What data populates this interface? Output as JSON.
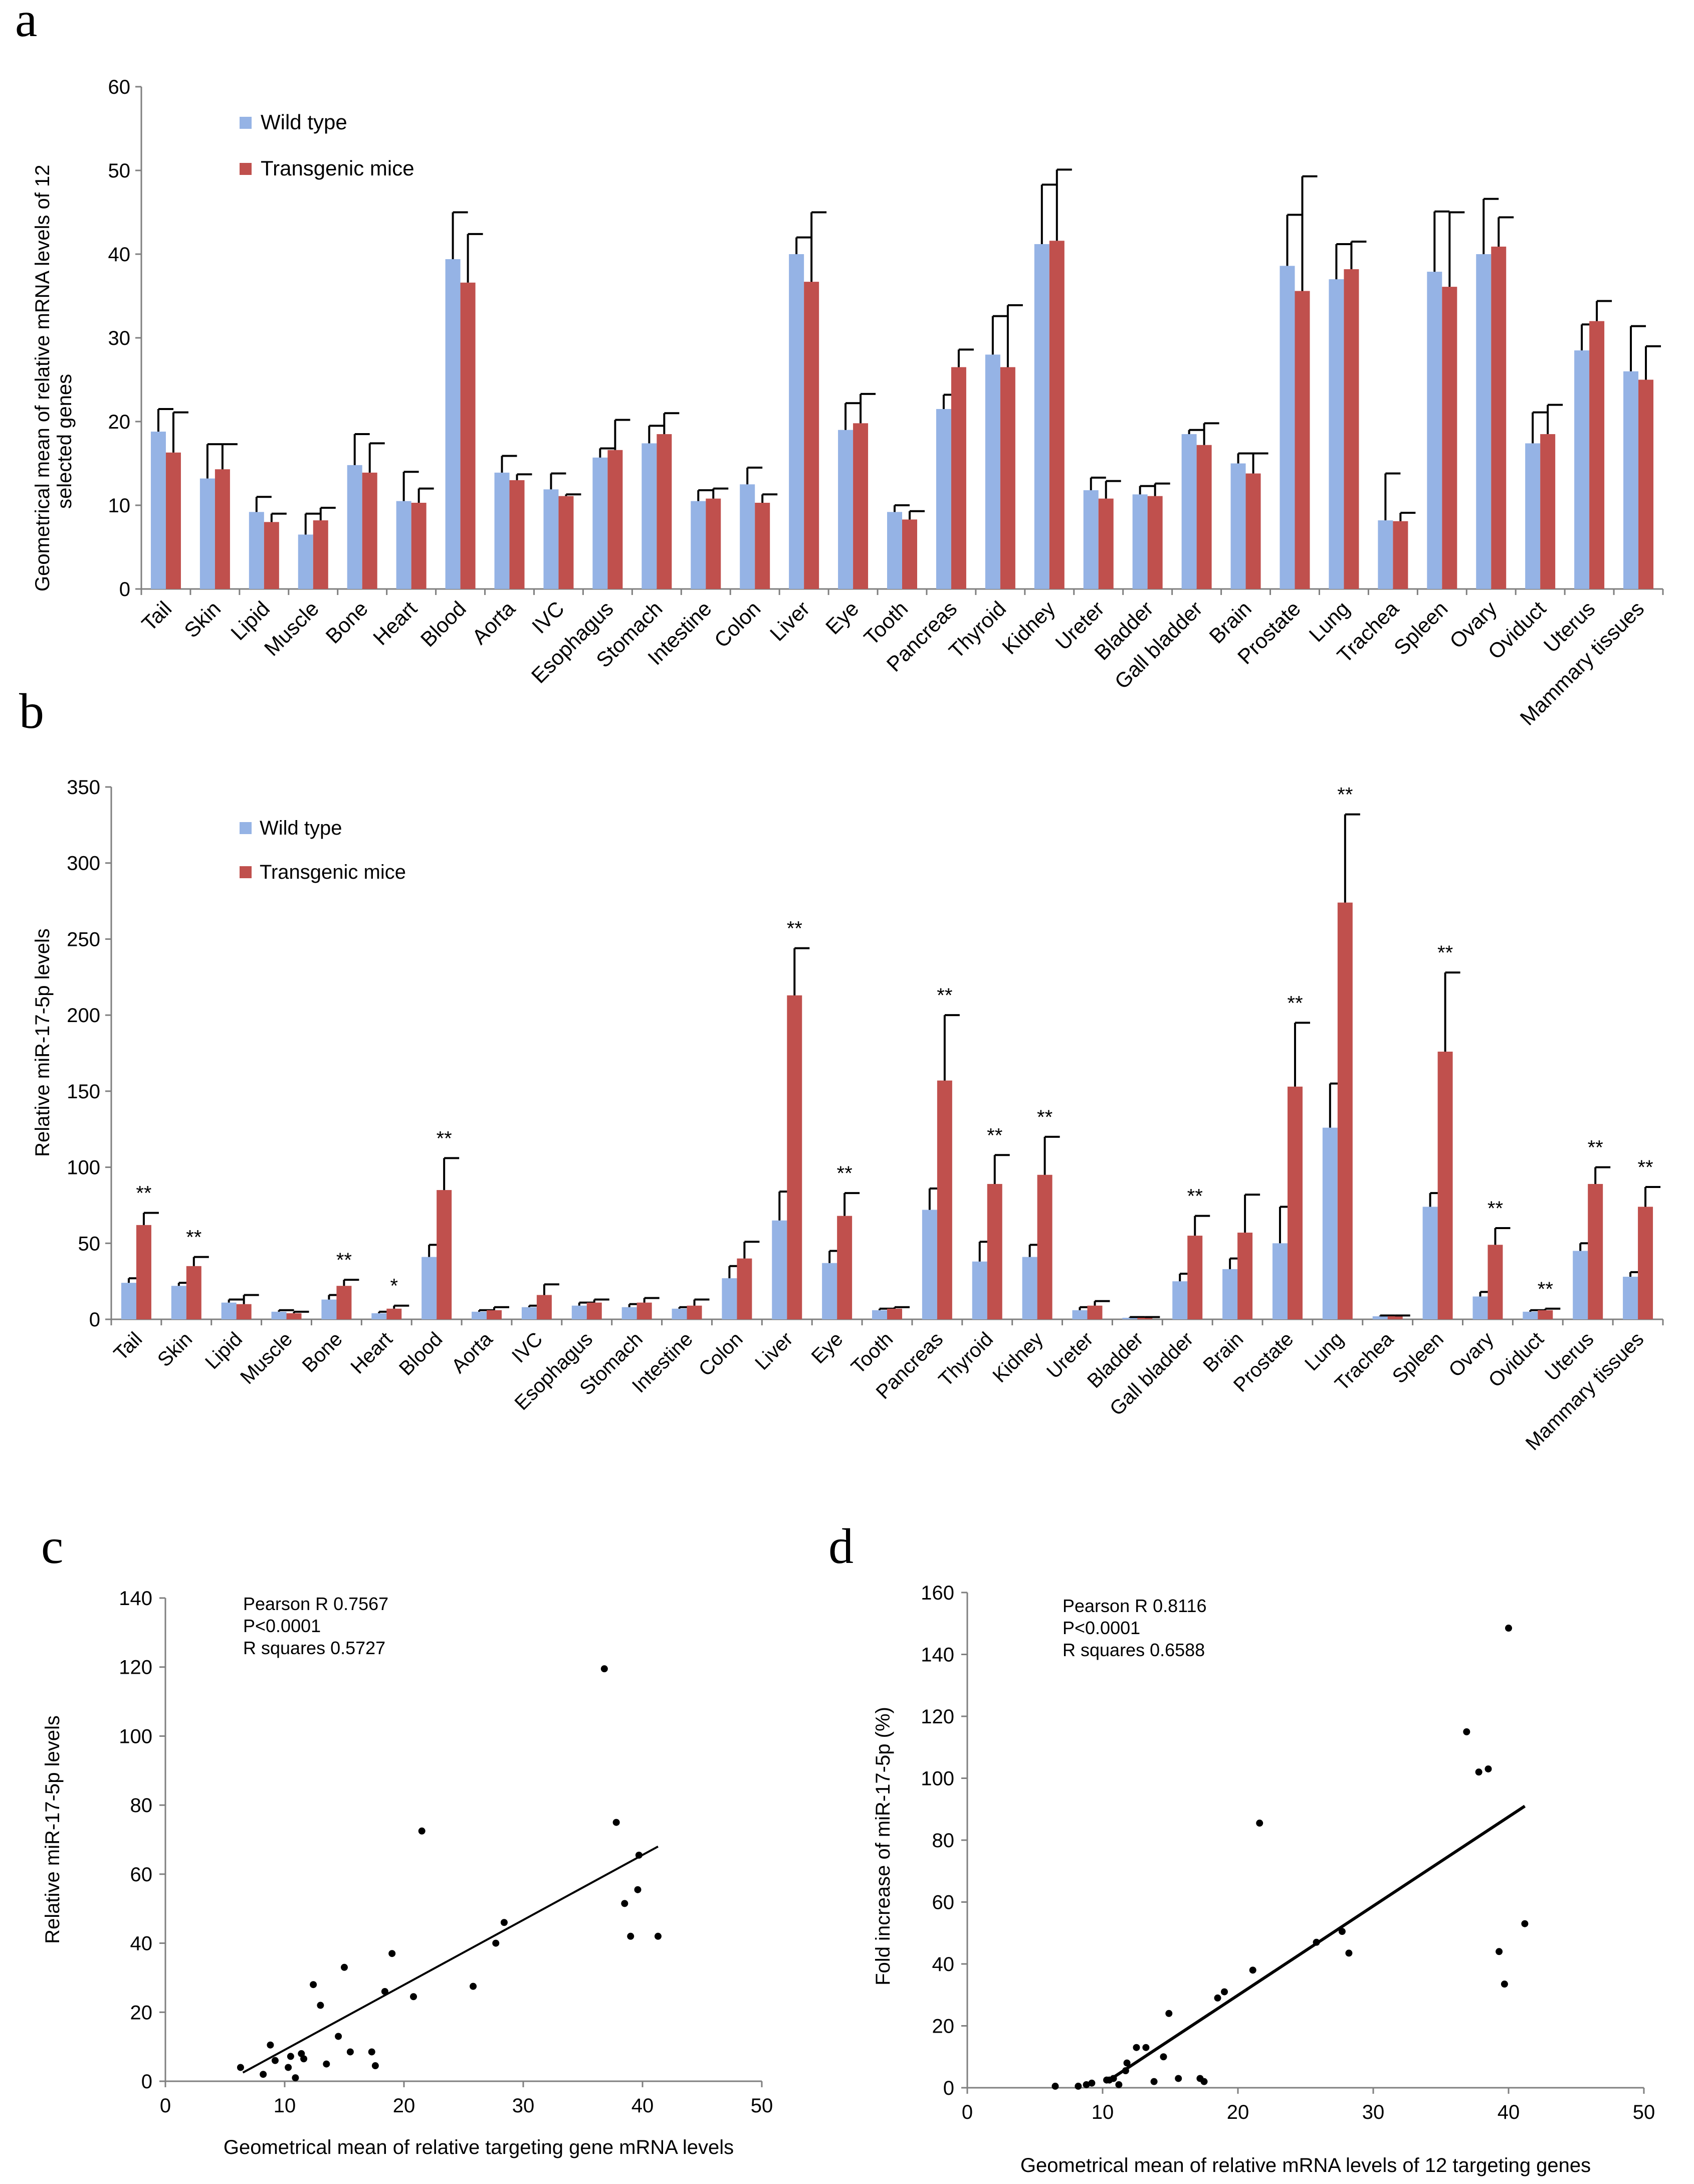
{
  "figure": {
    "colors": {
      "wild_type": "#95B3E5",
      "transgenic": "#C0504D",
      "axis": "#7f7f7f",
      "ink": "#000000"
    }
  },
  "chart_data": [
    {
      "id": "a",
      "panel_label": "a",
      "type": "bar",
      "title": "",
      "xlabel": "",
      "ylabel": "Geometrical mean of relative mRNA levels of 12 selected genes",
      "ylabel_lines": [
        "Geometrical mean of relative mRNA levels of 12",
        "selected genes"
      ],
      "ylim": [
        0,
        60
      ],
      "yticks": [
        0,
        10,
        20,
        30,
        40,
        50,
        60
      ],
      "legend_position": "top-left",
      "categories": [
        "Tail",
        "Skin",
        "Lipid",
        "Muscle",
        "Bone",
        "Heart",
        "Blood",
        "Aorta",
        "IVC",
        "Esophagus",
        "Stomach",
        "Intestine",
        "Colon",
        "Liver",
        "Eye",
        "Tooth",
        "Pancreas",
        "Thyroid",
        "Kidney",
        "Ureter",
        "Bladder",
        "Gall bladder",
        "Brain",
        "Prostate",
        "Lung",
        "Trachea",
        "Spleen",
        "Ovary",
        "Oviduct",
        "Uterus",
        "Mammary tissues"
      ],
      "series": [
        {
          "name": "Wild type",
          "values": [
            18.8,
            13.2,
            9.2,
            6.5,
            14.8,
            10.5,
            39.4,
            13.9,
            11.9,
            15.7,
            17.4,
            10.5,
            12.5,
            40,
            19,
            9.2,
            21.5,
            28,
            41.2,
            11.8,
            11.3,
            18.5,
            15,
            38.6,
            37,
            8.2,
            37.9,
            40,
            17.4,
            28.5,
            26
          ],
          "errors": [
            2.7,
            4.1,
            1.8,
            2.5,
            3.7,
            3.5,
            5.6,
            2.0,
            1.9,
            1.1,
            2.1,
            1.3,
            2.0,
            2.0,
            3.2,
            0.8,
            1.7,
            4.6,
            7.1,
            1.5,
            1.0,
            0.5,
            1.2,
            6.1,
            4.2,
            5.6,
            7.2,
            6.6,
            3.7,
            3.1,
            5.4
          ]
        },
        {
          "name": "Transgenic mice",
          "values": [
            16.3,
            14.3,
            8,
            8.2,
            13.9,
            10.3,
            36.6,
            13,
            11.1,
            16.6,
            18.5,
            10.8,
            10.3,
            36.7,
            19.8,
            8.3,
            26.5,
            26.5,
            41.6,
            10.8,
            11.1,
            17.2,
            13.8,
            35.6,
            38.2,
            8.1,
            36.1,
            40.9,
            18.5,
            32,
            25
          ],
          "errors": [
            4.8,
            3.0,
            1.0,
            1.5,
            3.5,
            1.7,
            5.8,
            0.7,
            0.2,
            3.6,
            2.5,
            1.2,
            1.0,
            8.3,
            3.5,
            1.0,
            2.1,
            7.4,
            8.5,
            2.1,
            1.5,
            2.6,
            2.4,
            13.7,
            3.3,
            1.0,
            8.9,
            3.5,
            3.5,
            2.4,
            4.0
          ]
        }
      ]
    },
    {
      "id": "b",
      "panel_label": "b",
      "type": "bar",
      "title": "",
      "xlabel": "",
      "ylabel": "Relative miR-17-5p levels",
      "ylim": [
        0,
        350
      ],
      "yticks": [
        0,
        50,
        100,
        150,
        200,
        250,
        300,
        350
      ],
      "legend_position": "top-left",
      "categories": [
        "Tail",
        "Skin",
        "Lipid",
        "Muscle",
        "Bone",
        "Heart",
        "Blood",
        "Aorta",
        "IVC",
        "Esophagus",
        "Stomach",
        "Intestine",
        "Colon",
        "Liver",
        "Eye",
        "Tooth",
        "Pancreas",
        "Thyroid",
        "Kidney",
        "Ureter",
        "Bladder",
        "Gall bladder",
        "Brain",
        "Prostate",
        "Lung",
        "Trachea",
        "Spleen",
        "Ovary",
        "Oviduct",
        "Uterus",
        "Mammary tissues"
      ],
      "series": [
        {
          "name": "Wild type",
          "values": [
            24,
            22,
            11,
            5,
            13,
            4,
            41,
            5,
            8,
            9,
            8,
            7,
            27,
            65,
            37,
            6,
            72,
            38,
            41,
            6,
            1,
            25,
            33,
            50,
            126,
            2,
            74,
            15,
            5,
            45,
            28
          ],
          "errors": [
            3,
            2,
            2,
            1,
            3,
            1,
            8,
            1,
            1,
            2,
            2,
            1,
            8,
            19,
            8,
            1,
            14,
            13,
            8,
            2,
            0.5,
            5,
            7,
            24,
            29,
            0.5,
            9,
            3,
            1,
            5,
            3
          ]
        },
        {
          "name": "Transgenic mice",
          "values": [
            62,
            35,
            10,
            4,
            22,
            7,
            85,
            6,
            16,
            11,
            11,
            9,
            40,
            213,
            68,
            7,
            157,
            89,
            95,
            9,
            1,
            55,
            57,
            153,
            274,
            2,
            176,
            49,
            6,
            89,
            74
          ],
          "errors": [
            8,
            6,
            6,
            1,
            4,
            2,
            21,
            2,
            7,
            2,
            3,
            4,
            11,
            31,
            15,
            1,
            43,
            19,
            25,
            3,
            0.5,
            13,
            25,
            42,
            58,
            0.5,
            52,
            11,
            1,
            11,
            13
          ]
        }
      ],
      "significance": [
        "**",
        "**",
        "",
        "",
        "**",
        "*",
        "**",
        "",
        "",
        "",
        "",
        "",
        "",
        "**",
        "**",
        "",
        "**",
        "**",
        "**",
        "",
        "",
        "**",
        "",
        "**",
        "**",
        "",
        "**",
        "**",
        "**",
        "**",
        "**"
      ]
    },
    {
      "id": "c",
      "panel_label": "c",
      "type": "scatter",
      "title": "",
      "xlabel": "Geometrical mean of relative targeting gene mRNA levels",
      "ylabel": "Relative miR-17-5p levels",
      "xlim": [
        0,
        50
      ],
      "ylim": [
        0,
        140
      ],
      "xticks": [
        0,
        10,
        20,
        30,
        40,
        50
      ],
      "yticks": [
        0,
        20,
        40,
        60,
        80,
        100,
        120,
        140
      ],
      "annotations": [
        "Pearson R 0.7567",
        "P<0.0001",
        "R squares 0.5727"
      ],
      "points": [
        [
          6.3,
          4
        ],
        [
          8.2,
          2
        ],
        [
          8.8,
          10.5
        ],
        [
          9.2,
          6
        ],
        [
          10.3,
          4
        ],
        [
          10.5,
          7.2
        ],
        [
          10.9,
          1
        ],
        [
          11.4,
          8
        ],
        [
          11.6,
          6.5
        ],
        [
          12.4,
          28
        ],
        [
          13.0,
          22
        ],
        [
          13.5,
          5
        ],
        [
          14.5,
          13
        ],
        [
          15,
          33
        ],
        [
          15.5,
          8.5
        ],
        [
          17.3,
          8.5
        ],
        [
          17.6,
          4.5
        ],
        [
          18.4,
          26
        ],
        [
          19,
          37
        ],
        [
          20.8,
          24.5
        ],
        [
          21.5,
          72.5
        ],
        [
          25.8,
          27.5
        ],
        [
          27.7,
          40
        ],
        [
          28.4,
          46
        ],
        [
          36.8,
          119.5
        ],
        [
          37.8,
          75
        ],
        [
          38.5,
          51.5
        ],
        [
          39,
          42
        ],
        [
          39.6,
          55.5
        ],
        [
          39.7,
          65.5
        ],
        [
          41.3,
          42
        ]
      ],
      "fit_line": {
        "x": [
          6.5,
          41.3
        ],
        "y": [
          2.5,
          68
        ]
      }
    },
    {
      "id": "d",
      "panel_label": "d",
      "type": "scatter",
      "title": "",
      "xlabel": "Geometrical mean of relative mRNA levels of 12 targeting genes",
      "ylabel": "Fold increase of miR-17-5p (%)",
      "xlim": [
        0,
        50
      ],
      "ylim": [
        0,
        160
      ],
      "xticks": [
        0,
        10,
        20,
        30,
        40,
        50
      ],
      "yticks": [
        0,
        20,
        40,
        60,
        80,
        100,
        120,
        140,
        160
      ],
      "annotations": [
        "Pearson R 0.8116",
        "P<0.0001",
        "R squares 0.6588"
      ],
      "points": [
        [
          6.5,
          0.5
        ],
        [
          8.2,
          0.5
        ],
        [
          8.8,
          1
        ],
        [
          9.2,
          1.5
        ],
        [
          10.3,
          2.5
        ],
        [
          10.5,
          2.5
        ],
        [
          10.8,
          3
        ],
        [
          11.2,
          1
        ],
        [
          11.7,
          5.5
        ],
        [
          11.8,
          8
        ],
        [
          12.5,
          13
        ],
        [
          13.2,
          13
        ],
        [
          13.8,
          2
        ],
        [
          14.5,
          10
        ],
        [
          14.9,
          24
        ],
        [
          15.6,
          3
        ],
        [
          17.2,
          3
        ],
        [
          17.5,
          2
        ],
        [
          18.5,
          29
        ],
        [
          19,
          31
        ],
        [
          21.1,
          38
        ],
        [
          21.6,
          85.5
        ],
        [
          25.8,
          47
        ],
        [
          27.7,
          50.5
        ],
        [
          28.2,
          43.5
        ],
        [
          36.9,
          115
        ],
        [
          37.8,
          102
        ],
        [
          38.5,
          103
        ],
        [
          39.3,
          44
        ],
        [
          39.7,
          33.5
        ],
        [
          40,
          148.5
        ],
        [
          41.2,
          53
        ]
      ],
      "fit_line": {
        "x": [
          10.5,
          41.2
        ],
        "y": [
          2.5,
          91
        ]
      }
    }
  ]
}
